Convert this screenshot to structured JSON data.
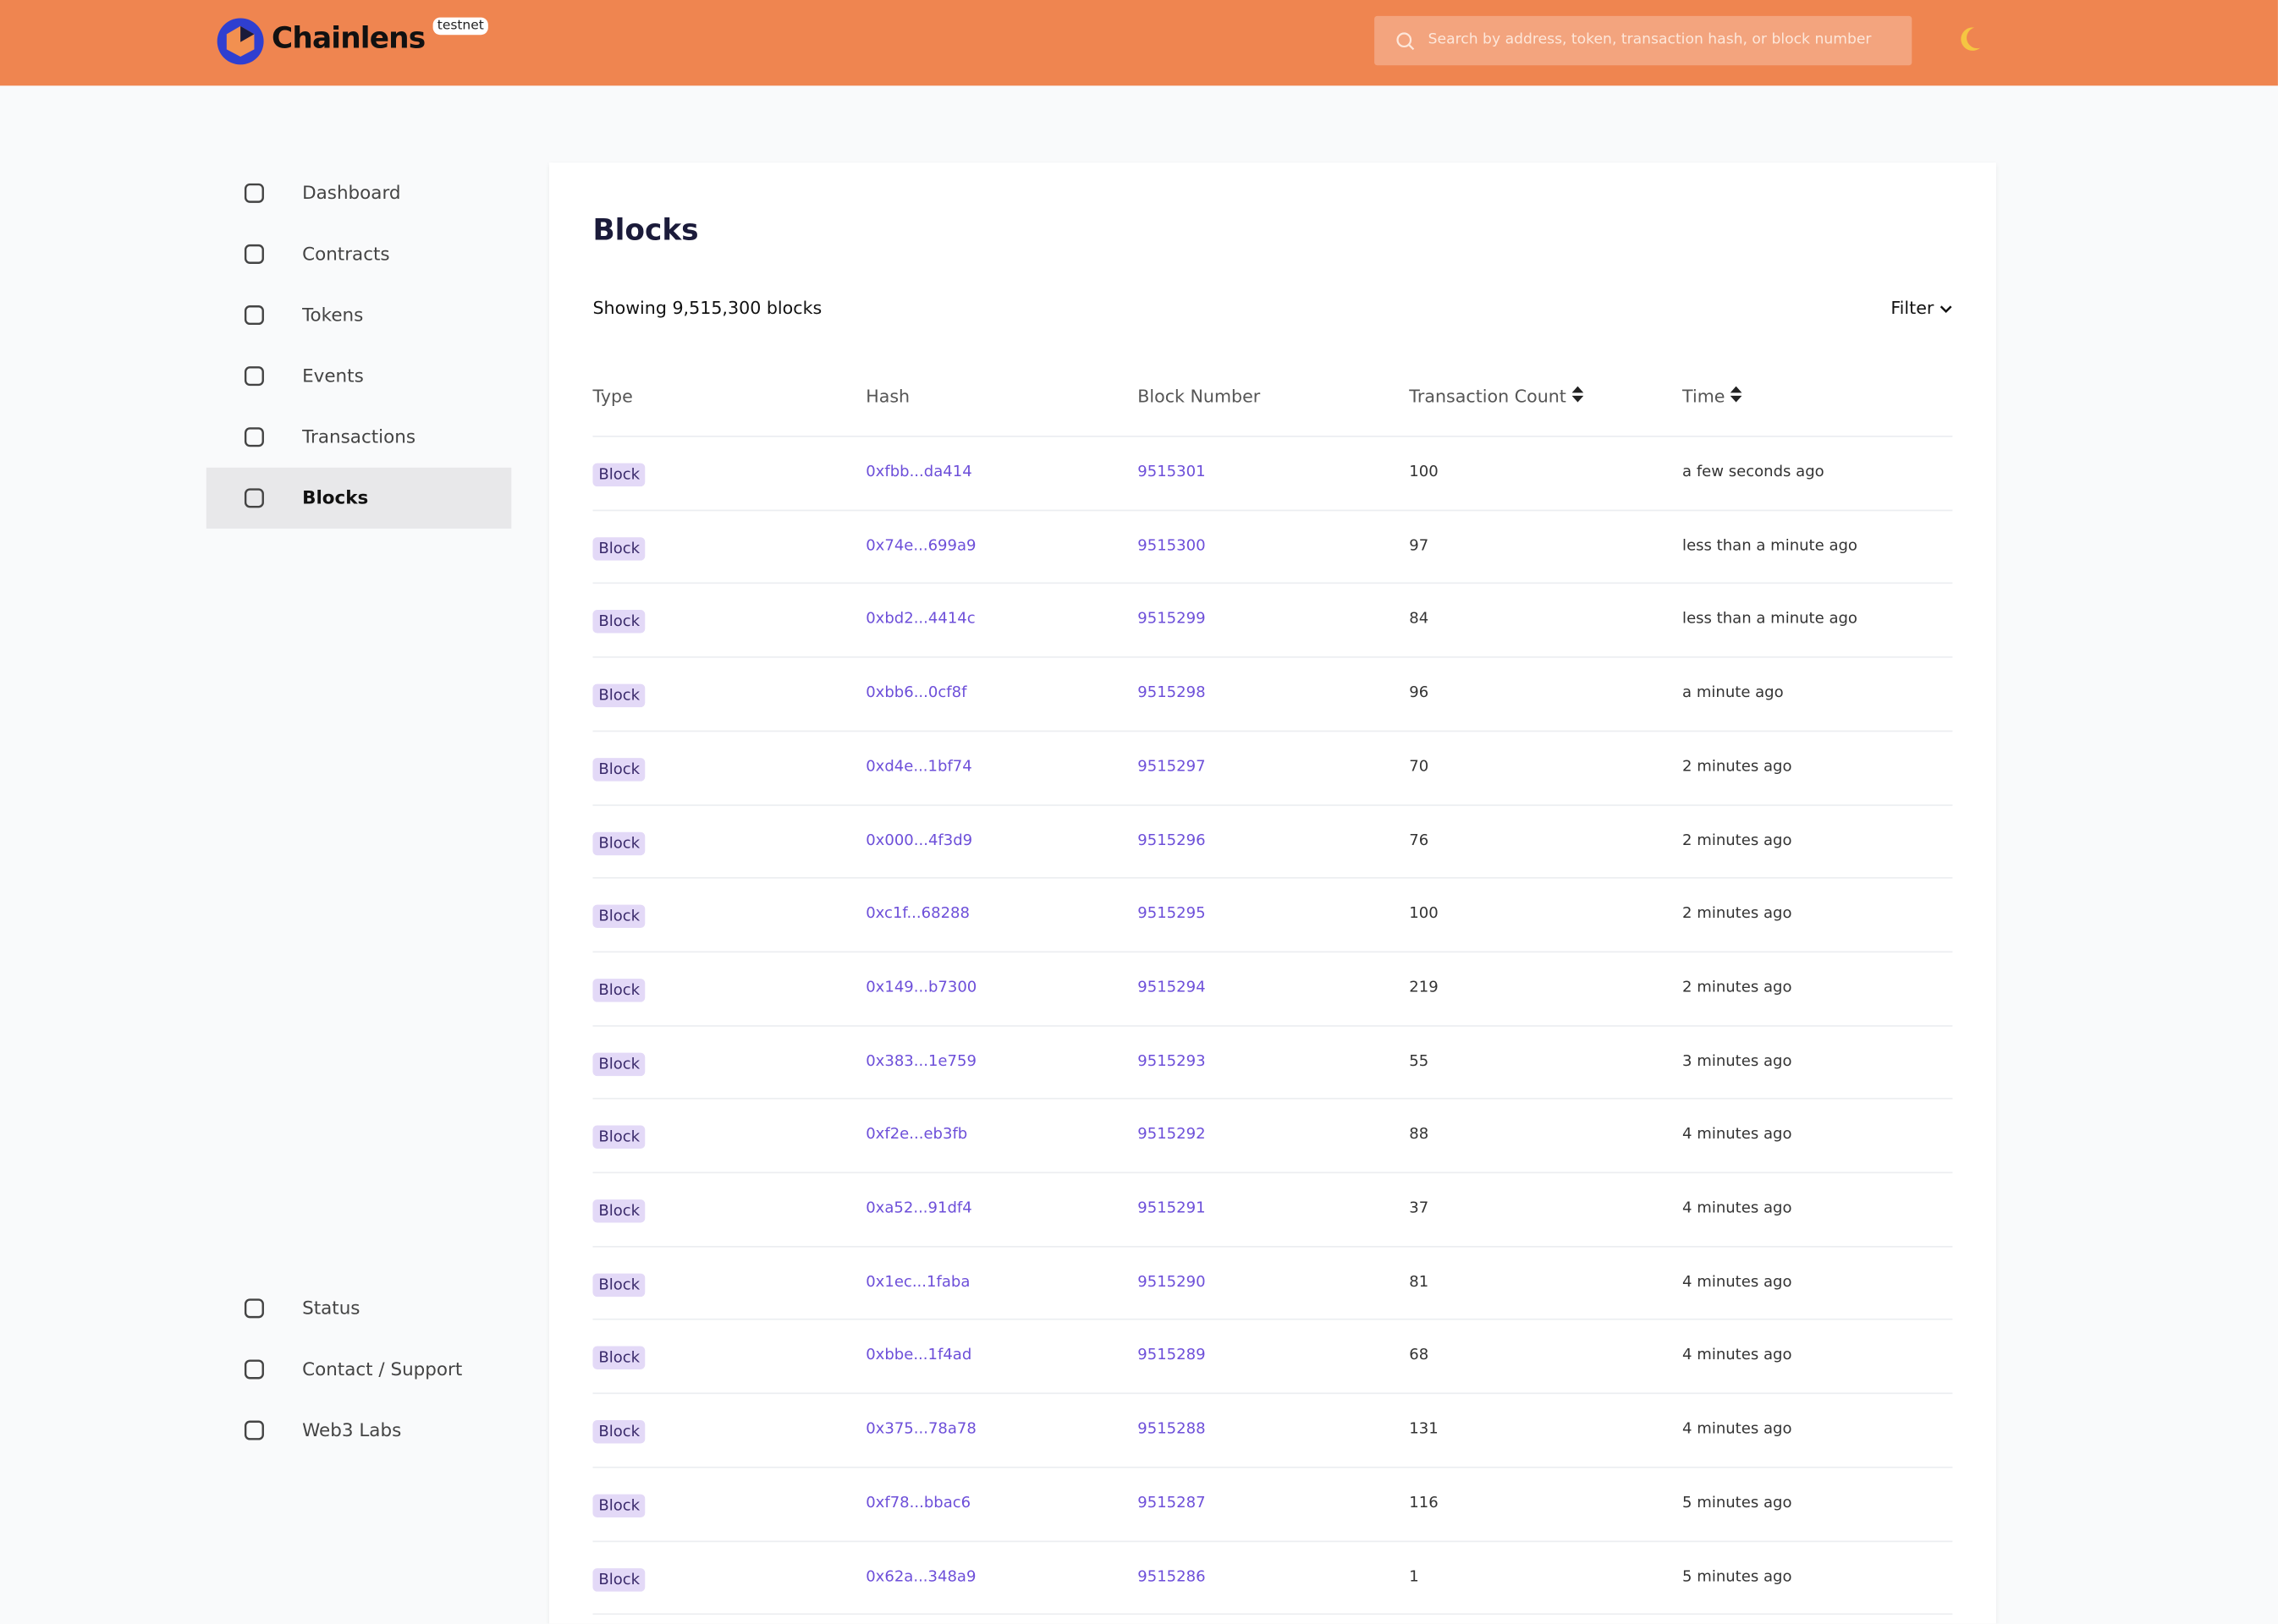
{
  "header": {
    "brand": "Chainlens",
    "badge": "testnet",
    "search_placeholder": "Search by address, token, transaction hash, or block number"
  },
  "sidebar": {
    "main": [
      "Dashboard",
      "Contracts",
      "Tokens",
      "Events",
      "Transactions",
      "Blocks"
    ],
    "active": "Blocks",
    "footer": [
      "Status",
      "Contact / Support",
      "Web3 Labs"
    ]
  },
  "page": {
    "title": "Blocks",
    "summary": "Showing 9,515,300 blocks",
    "filter": "Filter"
  },
  "table": {
    "columns": [
      "Type",
      "Hash",
      "Block Number",
      "Transaction Count",
      "Time"
    ],
    "rows": [
      [
        "Block",
        "0xfbb...da414",
        "9515301",
        "100",
        "a few seconds ago"
      ],
      [
        "Block",
        "0x74e...699a9",
        "9515300",
        "97",
        "less than a minute ago"
      ],
      [
        "Block",
        "0xbd2...4414c",
        "9515299",
        "84",
        "less than a minute ago"
      ],
      [
        "Block",
        "0xbb6...0cf8f",
        "9515298",
        "96",
        "a minute ago"
      ],
      [
        "Block",
        "0xd4e...1bf74",
        "9515297",
        "70",
        "2 minutes ago"
      ],
      [
        "Block",
        "0x000...4f3d9",
        "9515296",
        "76",
        "2 minutes ago"
      ],
      [
        "Block",
        "0xc1f...68288",
        "9515295",
        "100",
        "2 minutes ago"
      ],
      [
        "Block",
        "0x149...b7300",
        "9515294",
        "219",
        "2 minutes ago"
      ],
      [
        "Block",
        "0x383...1e759",
        "9515293",
        "55",
        "3 minutes ago"
      ],
      [
        "Block",
        "0xf2e...eb3fb",
        "9515292",
        "88",
        "4 minutes ago"
      ],
      [
        "Block",
        "0xa52...91df4",
        "9515291",
        "37",
        "4 minutes ago"
      ],
      [
        "Block",
        "0x1ec...1faba",
        "9515290",
        "81",
        "4 minutes ago"
      ],
      [
        "Block",
        "0xbbe...1f4ad",
        "9515289",
        "68",
        "4 minutes ago"
      ],
      [
        "Block",
        "0x375...78a78",
        "9515288",
        "131",
        "4 minutes ago"
      ],
      [
        "Block",
        "0xf78...bbac6",
        "9515287",
        "116",
        "5 minutes ago"
      ],
      [
        "Block",
        "0x62a...348a9",
        "9515286",
        "1",
        "5 minutes ago"
      ]
    ]
  }
}
